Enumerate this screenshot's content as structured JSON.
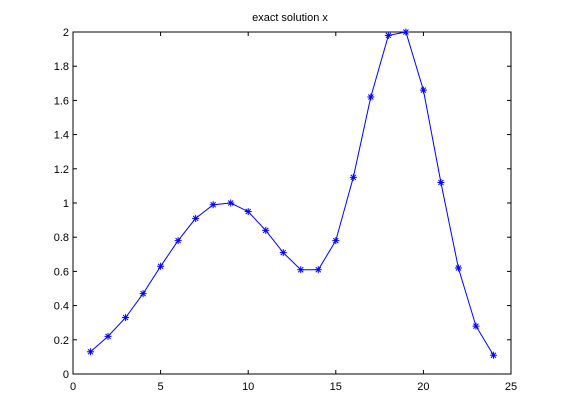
{
  "chart_data": {
    "type": "line",
    "title": "exact solution x",
    "xlabel": "",
    "ylabel": "",
    "xlim": [
      0,
      25
    ],
    "ylim": [
      0,
      2
    ],
    "xticks": [
      0,
      5,
      10,
      15,
      20,
      25
    ],
    "yticks": [
      0,
      0.2,
      0.4,
      0.6,
      0.8,
      1,
      1.2,
      1.4,
      1.6,
      1.8,
      2
    ],
    "xtick_labels": [
      "0",
      "5",
      "10",
      "15",
      "20",
      "25"
    ],
    "ytick_labels": [
      "0",
      "0.2",
      "0.4",
      "0.6",
      "0.8",
      "1",
      "1.2",
      "1.4",
      "1.6",
      "1.8",
      "2"
    ],
    "grid": false,
    "marker": "asterisk",
    "line_color": "#0000ff",
    "series": [
      {
        "x": [
          1,
          2,
          3,
          4,
          5,
          6,
          7,
          8,
          9,
          10,
          11,
          12,
          13,
          14,
          15,
          16,
          17,
          18,
          19,
          20,
          21,
          22,
          23,
          24
        ],
        "y": [
          0.13,
          0.22,
          0.33,
          0.47,
          0.63,
          0.78,
          0.91,
          0.99,
          1.0,
          0.95,
          0.84,
          0.71,
          0.61,
          0.61,
          0.78,
          1.15,
          1.62,
          1.98,
          2.0,
          1.66,
          1.12,
          0.62,
          0.28,
          0.11
        ]
      }
    ]
  }
}
